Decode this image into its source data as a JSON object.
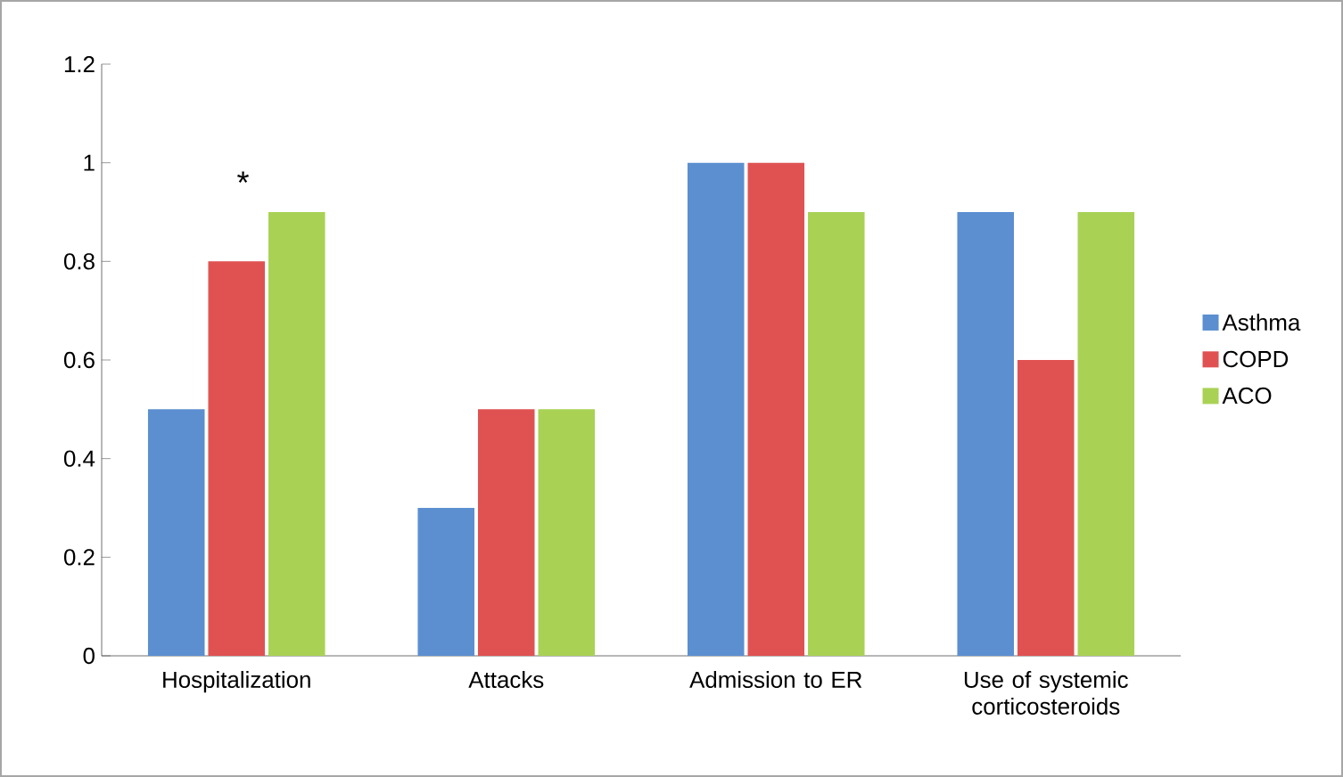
{
  "chart_data": {
    "type": "bar",
    "categories": [
      "Hospitalization",
      "Attacks",
      "Admission to ER",
      "Use of systemic corticosteroids"
    ],
    "series": [
      {
        "name": "Asthma",
        "color": "#5b8fd0",
        "values": [
          0.5,
          0.3,
          1,
          0.9
        ]
      },
      {
        "name": "COPD",
        "color": "#e05252",
        "values": [
          0.8,
          0.5,
          1,
          0.6
        ]
      },
      {
        "name": "ACO",
        "color": "#a9d254",
        "values": [
          0.9,
          0.5,
          0.9,
          0.9
        ]
      }
    ],
    "ylim": [
      0,
      1.2
    ],
    "yticks": [
      0,
      0.2,
      0.4,
      0.6,
      0.8,
      1,
      1.2
    ],
    "grid": false,
    "legend": "right",
    "annotations": [
      "*"
    ]
  }
}
